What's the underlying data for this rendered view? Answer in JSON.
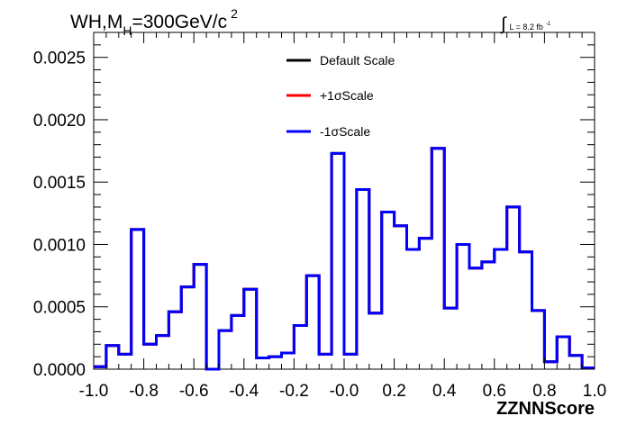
{
  "chart_data": {
    "type": "line",
    "subtype": "step-histogram",
    "title": {
      "main": "WH,M",
      "sub": "H",
      "rest": "=300GeV/c",
      "sup": "2"
    },
    "luminosity": {
      "symbol": "∫",
      "text": "L = 8.2 fb",
      "sup": "-1"
    },
    "xlabel": "ZZNNScore",
    "ylabel": "",
    "xlim": [
      -1.0,
      1.0
    ],
    "ylim": [
      0,
      0.0027
    ],
    "x_ticks": [
      "-1.0",
      "-0.8",
      "-0.6",
      "-0.4",
      "-0.2",
      "-0.0",
      "0.2",
      "0.4",
      "0.6",
      "0.8",
      "1.0"
    ],
    "x_tick_values": [
      -1.0,
      -0.8,
      -0.6,
      -0.4,
      -0.2,
      0.0,
      0.2,
      0.4,
      0.6,
      0.8,
      1.0
    ],
    "y_ticks": [
      "0.0000",
      "0.0005",
      "0.0010",
      "0.0015",
      "0.0020",
      "0.0025"
    ],
    "y_tick_values": [
      0,
      0.0005,
      0.001,
      0.0015,
      0.002,
      0.0025
    ],
    "bin_edges": [
      -1.0,
      -0.95,
      -0.9,
      -0.85,
      -0.8,
      -0.75,
      -0.7,
      -0.65,
      -0.6,
      -0.55,
      -0.5,
      -0.45,
      -0.4,
      -0.35,
      -0.3,
      -0.25,
      -0.2,
      -0.15,
      -0.1,
      -0.05,
      0.0,
      0.05,
      0.1,
      0.15,
      0.2,
      0.25,
      0.3,
      0.35,
      0.4,
      0.45,
      0.5,
      0.55,
      0.6,
      0.65,
      0.7,
      0.75,
      0.8,
      0.85,
      0.9,
      0.95,
      1.0
    ],
    "series": [
      {
        "name": "Default Scale",
        "color": "#000000",
        "values": [
          2e-05,
          0.00019,
          0.00012,
          0.00112,
          0.0002,
          0.00027,
          0.00046,
          0.00066,
          0.00084,
          0.0,
          0.00031,
          0.00043,
          0.00064,
          9e-05,
          0.0001,
          0.00013,
          0.00035,
          0.00075,
          0.00012,
          0.00173,
          0.00012,
          0.00144,
          0.00045,
          0.00126,
          0.00115,
          0.00096,
          0.00105,
          0.00177,
          0.00049,
          0.001,
          0.00081,
          0.00086,
          0.00096,
          0.0013,
          0.00094,
          0.00047,
          6e-05,
          0.00026,
          0.00011,
          1e-05
        ]
      },
      {
        "name": "+1σScale",
        "color": "#ff0000",
        "values": [
          2e-05,
          0.00019,
          0.00012,
          0.00112,
          0.0002,
          0.00027,
          0.00046,
          0.00066,
          0.00084,
          0.0,
          0.00031,
          0.00043,
          0.00064,
          9e-05,
          0.0001,
          0.00013,
          0.00035,
          0.00075,
          0.00012,
          0.00173,
          0.00012,
          0.00144,
          0.00045,
          0.00126,
          0.00115,
          0.00096,
          0.00105,
          0.00177,
          0.00049,
          0.001,
          0.00081,
          0.00086,
          0.00096,
          0.0013,
          0.00094,
          0.00047,
          6e-05,
          0.00026,
          0.00011,
          1e-05
        ]
      },
      {
        "name": "-1σScale",
        "color": "#0000ff",
        "values": [
          2e-05,
          0.00019,
          0.00012,
          0.00112,
          0.0002,
          0.00027,
          0.00046,
          0.00066,
          0.00084,
          0.0,
          0.00031,
          0.00043,
          0.00064,
          9e-05,
          0.0001,
          0.00013,
          0.00035,
          0.00075,
          0.00012,
          0.00173,
          0.00012,
          0.00144,
          0.00045,
          0.00126,
          0.00115,
          0.00096,
          0.00105,
          0.00177,
          0.00049,
          0.001,
          0.00081,
          0.00086,
          0.00096,
          0.0013,
          0.00094,
          0.00047,
          6e-05,
          0.00026,
          0.00011,
          1e-05
        ]
      }
    ],
    "legend": {
      "position": "top-center",
      "border": false
    },
    "grid": false
  }
}
